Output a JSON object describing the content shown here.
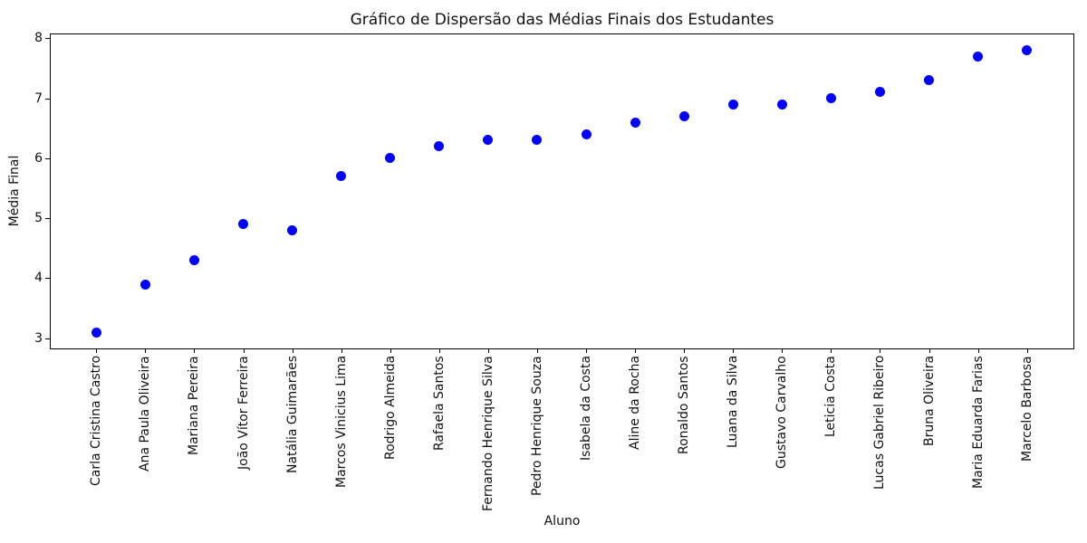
{
  "chart_data": {
    "type": "scatter",
    "title": "Gráfico de Dispersão das Médias Finais dos Estudantes",
    "xlabel": "Aluno",
    "ylabel": "Média Final",
    "categories": [
      "Carla Cristina Castro",
      "Ana Paula Oliveira",
      "Mariana Pereira",
      "João Vítor Ferreira",
      "Natália Guimarães",
      "Marcos Vinicius Lima",
      "Rodrigo Almeida",
      "Rafaela Santos",
      "Fernando Henrique Silva",
      "Pedro Henrique Souza",
      "Isabela da Costa",
      "Aline da Rocha",
      "Ronaldo Santos",
      "Luana da Silva",
      "Gustavo Carvalho",
      "Leticia Costa",
      "Lucas Gabriel Ribeiro",
      "Bruna Oliveira",
      "Maria Eduarda Farias",
      "Marcelo Barbosa"
    ],
    "values": [
      3.1,
      3.9,
      4.3,
      4.9,
      4.8,
      5.7,
      6.0,
      6.2,
      6.3,
      6.3,
      6.4,
      6.6,
      6.7,
      6.9,
      6.9,
      7.0,
      7.1,
      7.3,
      7.7,
      7.8
    ],
    "yticks": [
      3,
      4,
      5,
      6,
      7,
      8
    ],
    "ylim": [
      2.83,
      8.08
    ],
    "xlim_index": [
      -0.95,
      19.95
    ],
    "grid": false,
    "legend": "none",
    "marker_color": "#0000ff",
    "axis_color": "#000000",
    "background_color": "#ffffff"
  }
}
